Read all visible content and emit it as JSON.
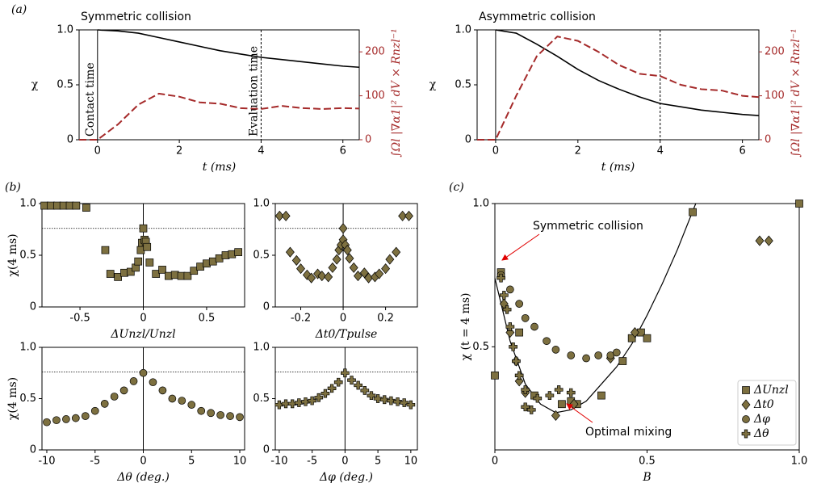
{
  "panel_labels": [
    "(a)",
    "(b)",
    "(c)"
  ],
  "chart_data": [
    {
      "type": "line",
      "title": "Symmetric collision",
      "xlabel": "t (ms)",
      "ylabel": "χ",
      "y2label": "∫Ωl |∇α1|² dV × Rnzl⁻¹",
      "xlim": [
        -0.45,
        6.4
      ],
      "ylim": [
        0,
        1
      ],
      "y2lim": [
        0,
        250
      ],
      "xticks": [
        0,
        2,
        4,
        6
      ],
      "yticks": [
        0,
        0.5,
        {
          "value": 1,
          "label": "1.0"
        }
      ],
      "y2ticks": [
        0,
        100,
        200
      ],
      "vlines": [
        0,
        4
      ],
      "annotations": [
        "Contact time",
        "Evaluation time"
      ],
      "series": [
        {
          "color": "#000000",
          "x": [
            0,
            0.5,
            1,
            1.5,
            2,
            2.5,
            3,
            3.5,
            4,
            4.5,
            5,
            5.5,
            6,
            6.4
          ],
          "values": [
            1.0,
            0.99,
            0.97,
            0.93,
            0.89,
            0.85,
            0.81,
            0.78,
            0.75,
            0.73,
            0.71,
            0.69,
            0.67,
            0.66
          ]
        },
        {
          "color": "#a52a2a",
          "axis": "y2",
          "x": [
            -0.45,
            0,
            0.5,
            1,
            1.5,
            2,
            2.5,
            3,
            3.5,
            4,
            4.5,
            5,
            5.5,
            6,
            6.4
          ],
          "values": [
            0,
            0,
            35,
            80,
            105,
            98,
            85,
            82,
            72,
            70,
            77,
            72,
            70,
            72,
            71
          ]
        }
      ]
    },
    {
      "type": "line",
      "title": "Asymmetric collision",
      "xlabel": "t (ms)",
      "ylabel": "χ",
      "y2label": "∫Ωl |∇α1|² dV × Rnzl⁻¹",
      "xlim": [
        -0.45,
        6.4
      ],
      "ylim": [
        0,
        1
      ],
      "y2lim": [
        0,
        250
      ],
      "xticks": [
        0,
        2,
        4,
        6
      ],
      "yticks": [
        0,
        0.5,
        {
          "value": 1,
          "label": "1.0"
        }
      ],
      "y2ticks": [
        0,
        100,
        200
      ],
      "vlines": [
        0,
        4
      ],
      "series": [
        {
          "color": "#000000",
          "x": [
            0,
            0.5,
            1,
            1.5,
            2,
            2.5,
            3,
            3.5,
            4,
            4.5,
            5,
            5.5,
            6,
            6.4
          ],
          "values": [
            1.0,
            0.97,
            0.87,
            0.76,
            0.64,
            0.54,
            0.46,
            0.39,
            0.33,
            0.3,
            0.27,
            0.25,
            0.23,
            0.22
          ]
        },
        {
          "color": "#a52a2a",
          "axis": "y2",
          "x": [
            -0.45,
            0,
            0.5,
            1,
            1.5,
            2,
            2.5,
            3,
            3.5,
            4,
            4.5,
            5,
            5.5,
            6,
            6.4
          ],
          "values": [
            0,
            0,
            100,
            190,
            235,
            225,
            200,
            170,
            150,
            145,
            125,
            115,
            112,
            100,
            97
          ]
        }
      ]
    },
    {
      "type": "scatter",
      "xlabel": "ΔUnzl/Unzl",
      "ylabel": "χ(4 ms)",
      "xlim": [
        -0.8,
        0.8
      ],
      "ylim": [
        0,
        1
      ],
      "xticks": [
        -0.5,
        0,
        0.5
      ],
      "yticks": [
        0,
        0.5,
        {
          "value": 1,
          "label": "1.0"
        }
      ],
      "vlines": [
        0
      ],
      "hlines": [
        0.76
      ],
      "series": [
        {
          "color": "#7d7040",
          "marker": "square",
          "x": [
            -0.78,
            -0.73,
            -0.68,
            -0.63,
            -0.58,
            -0.53,
            -0.45,
            -0.3,
            -0.26,
            -0.2,
            -0.15,
            -0.1,
            -0.06,
            -0.04,
            -0.02,
            -0.01,
            0,
            0.01,
            0.02,
            0.03,
            0.05,
            0.1,
            0.15,
            0.2,
            0.25,
            0.3,
            0.35,
            0.4,
            0.45,
            0.5,
            0.55,
            0.6,
            0.65,
            0.7,
            0.75
          ],
          "values": [
            0.98,
            0.98,
            0.98,
            0.98,
            0.98,
            0.98,
            0.96,
            0.55,
            0.32,
            0.29,
            0.33,
            0.34,
            0.38,
            0.44,
            0.55,
            0.62,
            0.76,
            0.65,
            0.63,
            0.58,
            0.43,
            0.32,
            0.36,
            0.3,
            0.31,
            0.3,
            0.3,
            0.35,
            0.39,
            0.42,
            0.44,
            0.47,
            0.5,
            0.51,
            0.53
          ]
        }
      ]
    },
    {
      "type": "scatter",
      "xlabel": "Δt0/Tpulse",
      "xlim": [
        -0.32,
        0.35
      ],
      "ylim": [
        0,
        1
      ],
      "xticks": [
        -0.2,
        0,
        0.2
      ],
      "yticks": [
        0,
        0.5,
        {
          "value": 1,
          "label": "1.0"
        }
      ],
      "vlines": [
        0
      ],
      "hlines": [
        0.76
      ],
      "series": [
        {
          "color": "#7d7040",
          "marker": "diamond",
          "x": [
            -0.3,
            -0.27,
            -0.25,
            -0.22,
            -0.2,
            -0.17,
            -0.15,
            -0.12,
            -0.1,
            -0.07,
            -0.05,
            -0.03,
            -0.02,
            -0.01,
            0,
            0,
            0.01,
            0.02,
            0.03,
            0.05,
            0.07,
            0.1,
            0.12,
            0.15,
            0.17,
            0.2,
            0.22,
            0.25,
            0.28,
            0.31
          ],
          "values": [
            0.88,
            0.88,
            0.53,
            0.45,
            0.37,
            0.31,
            0.28,
            0.32,
            0.3,
            0.29,
            0.38,
            0.46,
            0.55,
            0.6,
            0.76,
            0.65,
            0.6,
            0.55,
            0.47,
            0.38,
            0.3,
            0.33,
            0.28,
            0.29,
            0.32,
            0.37,
            0.46,
            0.53,
            0.88,
            0.88
          ]
        }
      ]
    },
    {
      "type": "scatter",
      "xlabel": "Δθ (deg.)",
      "ylabel": "χ(4 ms)",
      "xlim": [
        -10.5,
        10.5
      ],
      "ylim": [
        0,
        1
      ],
      "xticks": [
        -10,
        -5,
        0,
        5,
        10
      ],
      "yticks": [
        0,
        0.5,
        {
          "value": 1,
          "label": "1.0"
        }
      ],
      "vlines": [
        0
      ],
      "hlines": [
        0.76
      ],
      "series": [
        {
          "color": "#7d7040",
          "marker": "circle",
          "x": [
            -10,
            -9,
            -8,
            -7,
            -6,
            -5,
            -4,
            -3,
            -2,
            -1,
            0,
            1,
            2,
            3,
            4,
            5,
            6,
            7,
            8,
            9,
            10
          ],
          "values": [
            0.27,
            0.29,
            0.3,
            0.31,
            0.33,
            0.38,
            0.45,
            0.52,
            0.58,
            0.67,
            0.75,
            0.66,
            0.58,
            0.5,
            0.48,
            0.44,
            0.38,
            0.36,
            0.34,
            0.33,
            0.32
          ]
        }
      ]
    },
    {
      "type": "scatter",
      "xlabel": "Δφ (deg.)",
      "xlim": [
        -10.6,
        11
      ],
      "ylim": [
        0,
        1
      ],
      "xticks": [
        -10,
        -5,
        0,
        5,
        10
      ],
      "yticks": [
        0,
        0.5,
        {
          "value": 1,
          "label": "1.0"
        }
      ],
      "vlines": [
        0
      ],
      "hlines": [
        0.76
      ],
      "series": [
        {
          "color": "#7d7040",
          "marker": "plus",
          "x": [
            -10,
            -9,
            -8,
            -7,
            -6,
            -5,
            -4,
            -3,
            -2,
            -1,
            0,
            1,
            2,
            3,
            4,
            5,
            6,
            7,
            8,
            9,
            10
          ],
          "values": [
            0.44,
            0.45,
            0.45,
            0.46,
            0.47,
            0.48,
            0.51,
            0.55,
            0.6,
            0.66,
            0.75,
            0.68,
            0.63,
            0.58,
            0.53,
            0.5,
            0.49,
            0.48,
            0.47,
            0.46,
            0.44
          ]
        }
      ]
    },
    {
      "type": "scatter",
      "xlabel": "B",
      "ylabel": "χ (t = 4 ms)",
      "xlim": [
        0,
        1
      ],
      "ylim": [
        0.14,
        1
      ],
      "xticks": [
        0,
        0.5,
        {
          "value": 1,
          "label": "1.0"
        }
      ],
      "yticks": [
        0.5,
        {
          "value": 1,
          "label": "1.0"
        }
      ],
      "legend": "lower right",
      "annotations": [
        "Symmetric collision",
        "Optimal mixing"
      ],
      "curve": {
        "color": "#000000",
        "x": [
          0,
          0.05,
          0.1,
          0.15,
          0.2,
          0.25,
          0.3,
          0.35,
          0.4,
          0.45,
          0.5,
          0.55,
          0.6,
          0.66
        ],
        "values": [
          0.74,
          0.52,
          0.37,
          0.3,
          0.27,
          0.28,
          0.31,
          0.37,
          0.43,
          0.51,
          0.61,
          0.72,
          0.84,
          1.0
        ]
      },
      "series": [
        {
          "name": "ΔUnzl",
          "color": "#7d7040",
          "marker": "square",
          "x": [
            0,
            0.02,
            0.08,
            0.13,
            0.22,
            0.25,
            0.27,
            0.35,
            0.42,
            0.45,
            0.48,
            0.5,
            0.65,
            1.0
          ],
          "values": [
            0.4,
            0.76,
            0.55,
            0.33,
            0.3,
            0.31,
            0.3,
            0.33,
            0.45,
            0.53,
            0.55,
            0.53,
            0.97,
            1.0
          ]
        },
        {
          "name": "Δt0",
          "color": "#7d7040",
          "marker": "diamond",
          "x": [
            0.03,
            0.05,
            0.07,
            0.08,
            0.1,
            0.2,
            0.26,
            0.38,
            0.46,
            0.87,
            0.9
          ],
          "values": [
            0.65,
            0.55,
            0.45,
            0.38,
            0.34,
            0.26,
            0.3,
            0.46,
            0.55,
            0.87,
            0.87
          ]
        },
        {
          "name": "Δφ",
          "color": "#7d7040",
          "marker": "circle",
          "x": [
            0.02,
            0.05,
            0.08,
            0.1,
            0.13,
            0.17,
            0.2,
            0.25,
            0.3,
            0.34,
            0.38,
            0.4
          ],
          "values": [
            0.75,
            0.7,
            0.65,
            0.6,
            0.57,
            0.52,
            0.49,
            0.47,
            0.46,
            0.47,
            0.47,
            0.48
          ]
        },
        {
          "name": "Δθ",
          "color": "#7d7040",
          "marker": "plus",
          "x": [
            0.02,
            0.03,
            0.04,
            0.05,
            0.06,
            0.07,
            0.08,
            0.1,
            0.1,
            0.12,
            0.14,
            0.18,
            0.21,
            0.25
          ],
          "values": [
            0.74,
            0.68,
            0.63,
            0.57,
            0.5,
            0.45,
            0.4,
            0.35,
            0.29,
            0.28,
            0.32,
            0.33,
            0.35,
            0.34
          ]
        }
      ]
    }
  ]
}
